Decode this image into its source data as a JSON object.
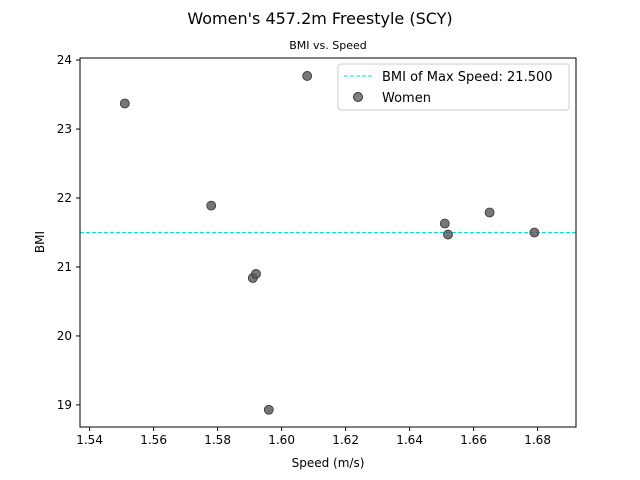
{
  "chart_data": {
    "type": "scatter",
    "title": "Women's 457.2m Freestyle (SCY)",
    "subtitle": "BMI vs. Speed",
    "xlabel": "Speed (m/s)",
    "ylabel": "BMI",
    "xlim": [
      1.537,
      1.692
    ],
    "ylim": [
      18.68,
      24.03
    ],
    "xticks": [
      1.54,
      1.56,
      1.58,
      1.6,
      1.62,
      1.64,
      1.66,
      1.68
    ],
    "xtick_labels": [
      "1.54",
      "1.56",
      "1.58",
      "1.60",
      "1.62",
      "1.64",
      "1.66",
      "1.68"
    ],
    "yticks": [
      19,
      20,
      21,
      22,
      23,
      24
    ],
    "ytick_labels": [
      "19",
      "20",
      "21",
      "22",
      "23",
      "24"
    ],
    "reference_line": {
      "label": "BMI of Max Speed: 21.500",
      "y": 21.5,
      "color": "#00e5d4",
      "style": "dashed"
    },
    "series": [
      {
        "name": "Women",
        "color": "#555555",
        "points": [
          {
            "x": 1.551,
            "y": 23.37
          },
          {
            "x": 1.578,
            "y": 21.89
          },
          {
            "x": 1.591,
            "y": 20.84
          },
          {
            "x": 1.592,
            "y": 20.9
          },
          {
            "x": 1.596,
            "y": 18.93
          },
          {
            "x": 1.608,
            "y": 23.77
          },
          {
            "x": 1.651,
            "y": 21.63
          },
          {
            "x": 1.652,
            "y": 21.47
          },
          {
            "x": 1.665,
            "y": 21.79
          },
          {
            "x": 1.679,
            "y": 21.5
          }
        ]
      }
    ],
    "legend": {
      "position": "top-right",
      "entries": [
        "BMI of Max Speed: 21.500",
        "Women"
      ]
    },
    "grid": false
  }
}
